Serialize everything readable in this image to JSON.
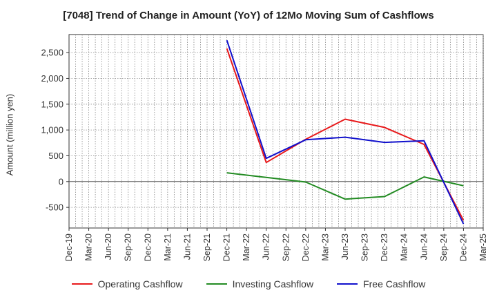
{
  "chart_data": {
    "type": "line",
    "title": "[7048]  Trend of Change in Amount (YoY) of 12Mo Moving Sum of Cashflows",
    "xlabel": "",
    "ylabel": "Amount (million yen)",
    "categories": [
      "Dec-19",
      "Mar-20",
      "Jun-20",
      "Sep-20",
      "Dec-20",
      "Mar-21",
      "Jun-21",
      "Sep-21",
      "Dec-21",
      "Mar-22",
      "Jun-22",
      "Sep-22",
      "Dec-22",
      "Mar-23",
      "Jun-23",
      "Sep-23",
      "Dec-23",
      "Mar-24",
      "Jun-24",
      "Sep-24",
      "Dec-24",
      "Mar-25"
    ],
    "ylim": [
      -900,
      2850
    ],
    "yticks": [
      -500,
      0,
      500,
      1000,
      1500,
      2000,
      2500
    ],
    "ytick_labels": [
      "-500",
      "0",
      "500",
      "1,000",
      "1,500",
      "2,000",
      "2,500"
    ],
    "grid": true,
    "legend_position": "bottom",
    "series": [
      {
        "name": "Operating Cashflow",
        "color": "#e8191b",
        "values": [
          null,
          null,
          null,
          null,
          null,
          null,
          null,
          null,
          2580,
          null,
          370,
          null,
          820,
          null,
          1210,
          null,
          1050,
          null,
          720,
          null,
          -750,
          null
        ]
      },
      {
        "name": "Investing Cashflow",
        "color": "#228b22",
        "values": [
          null,
          null,
          null,
          null,
          null,
          null,
          null,
          null,
          170,
          null,
          80,
          null,
          -10,
          null,
          -340,
          null,
          -290,
          null,
          90,
          null,
          -80,
          null
        ]
      },
      {
        "name": "Free Cashflow",
        "color": "#1010cc",
        "values": [
          null,
          null,
          null,
          null,
          null,
          null,
          null,
          null,
          2740,
          null,
          450,
          null,
          810,
          null,
          860,
          null,
          760,
          null,
          790,
          null,
          -820,
          null
        ]
      }
    ]
  }
}
